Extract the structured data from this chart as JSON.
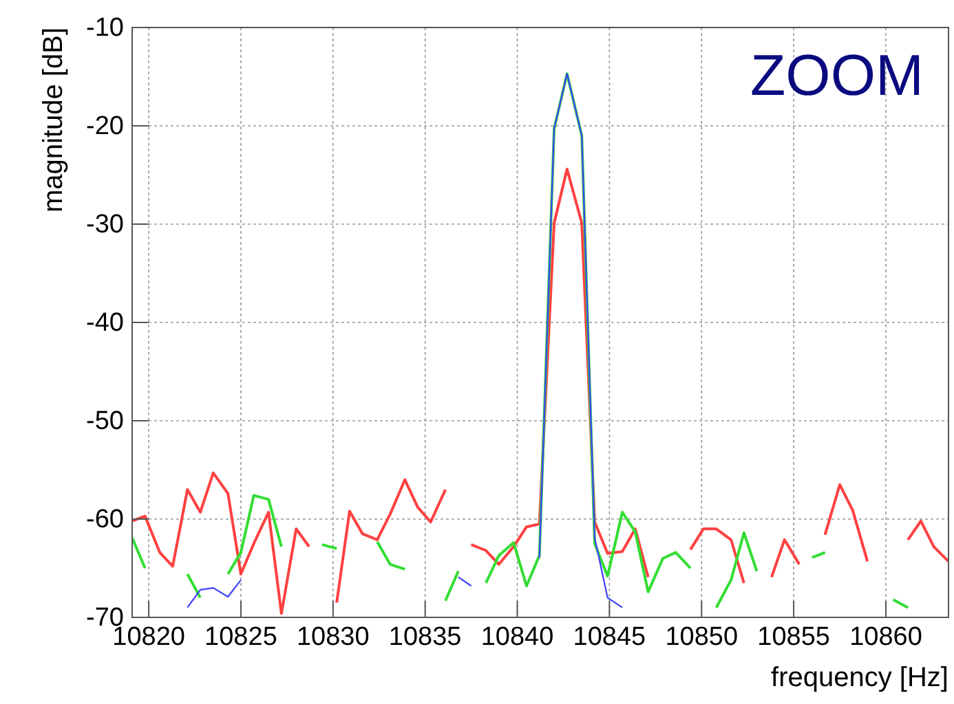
{
  "chart_data": {
    "type": "line",
    "xlabel": "frequency [Hz]",
    "ylabel": "magnitude [dB]",
    "annotations": [
      "ZOOM"
    ],
    "x": [
      10819.1,
      10819.8,
      10820.6,
      10821.3,
      10822.1,
      10822.8,
      10823.5,
      10824.3,
      10825.0,
      10825.7,
      10826.5,
      10827.2,
      10828.0,
      10828.7,
      10829.4,
      10830.2,
      10830.9,
      10831.6,
      10832.4,
      10833.1,
      10833.9,
      10834.6,
      10835.3,
      10836.1,
      10836.8,
      10837.5,
      10838.3,
      10839.0,
      10839.8,
      10840.5,
      10841.2,
      10842.0,
      10842.7,
      10843.5,
      10844.2,
      10844.9,
      10845.7,
      10846.4,
      10847.1,
      10847.9,
      10848.6,
      10849.4,
      10850.1,
      10850.8,
      10851.6,
      10852.3,
      10853.0,
      10853.8,
      10854.5,
      10855.3,
      10856.0,
      10856.7,
      10857.5,
      10858.2,
      10859.0,
      10860.4,
      10861.2,
      10861.9,
      10862.6,
      10863.4
    ],
    "series": [
      {
        "color": "#ff4040",
        "values": [
          -60.2,
          -59.7,
          -63.4,
          -64.8,
          -57,
          -59.3,
          -55.3,
          -57.4,
          -65.6,
          -62.5,
          -59.3,
          -69.6,
          -61,
          -62.8,
          null,
          -68.5,
          -59.2,
          -61.5,
          -62.1,
          -59.5,
          -56,
          -58.8,
          -60.3,
          -57,
          null,
          -62.6,
          -63.2,
          -64.6,
          -62.8,
          -60.8,
          -60.5,
          -29.9,
          -24.4,
          -29.9,
          -60.3,
          -63.5,
          -63.3,
          -61,
          -65.9,
          null,
          null,
          -63.1,
          -61,
          -61,
          -62.1,
          -66.5,
          null,
          -65.9,
          -62.1,
          -64.6,
          null,
          -61.6,
          -56.5,
          -59.1,
          -64.3,
          null,
          -62.1,
          -60.2,
          -62.8,
          -64.3
        ]
      },
      {
        "color": "#33dd33",
        "values": [
          -61.9,
          -65,
          null,
          null,
          -65.6,
          -68,
          null,
          -65.6,
          -63.4,
          -57.6,
          -58,
          -62.8,
          null,
          null,
          -62.6,
          -63,
          null,
          null,
          -62.3,
          -64.6,
          -65.1,
          null,
          null,
          -68.3,
          -65.3,
          null,
          -66.5,
          -63.7,
          -62.4,
          -66.8,
          -63.7,
          -20.3,
          -14.7,
          -21,
          -62.5,
          -65.8,
          -59.3,
          -61.3,
          -67.4,
          -64,
          -63.4,
          -65,
          null,
          -69,
          -66.2,
          -61.4,
          -65.3,
          null,
          null,
          null,
          -63.9,
          -63.4,
          null,
          null,
          null,
          -68.2,
          -69,
          null,
          null,
          null
        ]
      },
      {
        "color": "#4040ff",
        "values": [
          null,
          null,
          null,
          null,
          -69,
          -67.2,
          -67,
          -67.9,
          -66.2,
          null,
          null,
          null,
          null,
          null,
          null,
          null,
          null,
          null,
          null,
          null,
          null,
          null,
          null,
          null,
          -65.9,
          -66.8,
          null,
          null,
          null,
          null,
          -64,
          -20.3,
          -14.7,
          -21,
          -61.9,
          -68,
          -69,
          null,
          null,
          null,
          null,
          null,
          null,
          null,
          null,
          null,
          null,
          null,
          null,
          null,
          null,
          null,
          null,
          null,
          null,
          null,
          null,
          null,
          null,
          null
        ]
      }
    ],
    "xlim": [
      10819.1,
      10863.4
    ],
    "xticks": [
      10820,
      10825,
      10830,
      10835,
      10840,
      10845,
      10850,
      10855,
      10860
    ],
    "ylim": [
      -70,
      -10
    ],
    "yticks": [
      -70,
      -60,
      -50,
      -40,
      -30,
      -20,
      -10
    ],
    "grid": true,
    "marker": "none",
    "line_style": "solid"
  }
}
